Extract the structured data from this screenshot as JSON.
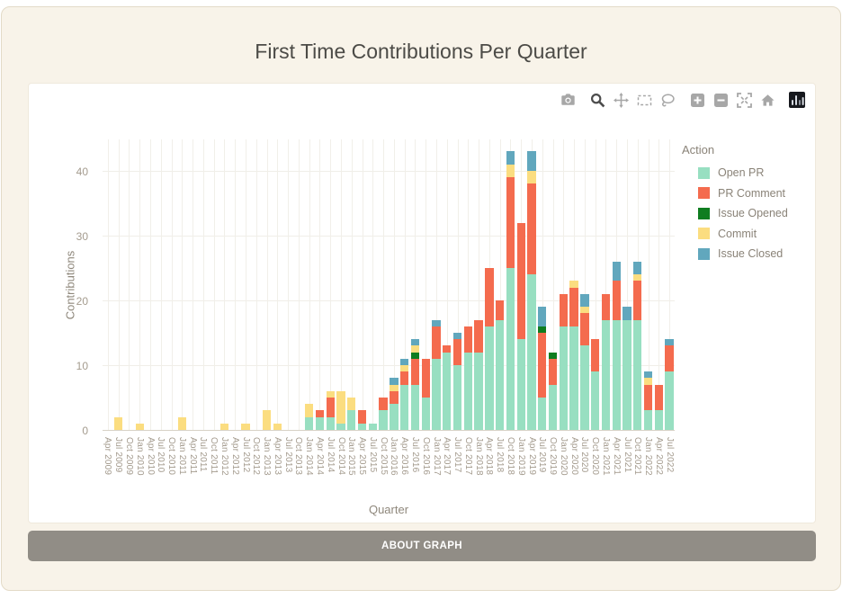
{
  "page": {
    "title": "First Time Contributions Per Quarter"
  },
  "about_button": {
    "label": "ABOUT GRAPH"
  },
  "colors": {
    "page_background": "#f8f3e9",
    "card_background": "#ffffff",
    "button_gray": "#918d86",
    "axis_text": "#a49b8e",
    "modebar_icon": "#a7a7a7",
    "modebar_active_icon": "#4c4c4c"
  },
  "modebar": {
    "icons": [
      "camera-icon",
      "zoom-icon",
      "pan-icon",
      "box-select-icon",
      "lasso-select-icon",
      "zoom-in-icon",
      "zoom-out-icon",
      "autoscale-icon",
      "reset-home-icon",
      "plotly-logo-icon"
    ]
  },
  "chart_data": {
    "type": "bar",
    "stacked": true,
    "title": "First Time Contributions Per Quarter",
    "xlabel": "Quarter",
    "ylabel": "Contributions",
    "legend_title": "Action",
    "legend_position": "right",
    "grid": true,
    "ylim": [
      0,
      45
    ],
    "yticks": [
      0,
      10,
      20,
      30,
      40
    ],
    "categories": [
      "Apr 2009",
      "Jul 2009",
      "Oct 2009",
      "Jan 2010",
      "Apr 2010",
      "Jul 2010",
      "Oct 2010",
      "Jan 2011",
      "Apr 2011",
      "Jul 2011",
      "Oct 2011",
      "Jan 2012",
      "Apr 2012",
      "Jul 2012",
      "Oct 2012",
      "Jan 2013",
      "Apr 2013",
      "Jul 2013",
      "Oct 2013",
      "Jan 2014",
      "Apr 2014",
      "Jul 2014",
      "Oct 2014",
      "Jan 2015",
      "Apr 2015",
      "Jul 2015",
      "Oct 2015",
      "Jan 2016",
      "Apr 2016",
      "Jul 2016",
      "Oct 2016",
      "Jan 2017",
      "Apr 2017",
      "Jul 2017",
      "Oct 2017",
      "Jan 2018",
      "Apr 2018",
      "Jul 2018",
      "Oct 2018",
      "Jan 2019",
      "Apr 2019",
      "Jul 2019",
      "Oct 2019",
      "Jan 2020",
      "Apr 2020",
      "Jul 2020",
      "Oct 2020",
      "Jan 2021",
      "Apr 2021",
      "Jul 2021",
      "Oct 2021",
      "Jan 2022",
      "Apr 2022",
      "Jul 2022"
    ],
    "series": [
      {
        "name": "Open PR",
        "color": "#98dfc1",
        "values": [
          0,
          0,
          0,
          0,
          0,
          0,
          0,
          0,
          0,
          0,
          0,
          0,
          0,
          0,
          0,
          0,
          0,
          0,
          0,
          2,
          2,
          2,
          1,
          3,
          1,
          1,
          3,
          4,
          7,
          7,
          5,
          11,
          12,
          10,
          12,
          12,
          16,
          17,
          25,
          14,
          24,
          5,
          7,
          16,
          16,
          13,
          9,
          17,
          17,
          17,
          17,
          3,
          3,
          9
        ]
      },
      {
        "name": "PR Comment",
        "color": "#f46b4e",
        "values": [
          0,
          0,
          0,
          0,
          0,
          0,
          0,
          0,
          0,
          0,
          0,
          0,
          0,
          0,
          0,
          0,
          0,
          0,
          0,
          0,
          1,
          3,
          0,
          0,
          2,
          0,
          2,
          2,
          2,
          4,
          6,
          5,
          1,
          4,
          4,
          5,
          9,
          3,
          14,
          18,
          14,
          10,
          4,
          5,
          6,
          5,
          5,
          4,
          6,
          0,
          6,
          4,
          4,
          4
        ]
      },
      {
        "name": "Issue Opened",
        "color": "#0f7d20",
        "values": [
          0,
          0,
          0,
          0,
          0,
          0,
          0,
          0,
          0,
          0,
          0,
          0,
          0,
          0,
          0,
          0,
          0,
          0,
          0,
          0,
          0,
          0,
          0,
          0,
          0,
          0,
          0,
          0,
          0,
          1,
          0,
          0,
          0,
          0,
          0,
          0,
          0,
          0,
          0,
          0,
          0,
          1,
          1,
          0,
          0,
          0,
          0,
          0,
          0,
          0,
          0,
          0,
          0,
          0
        ]
      },
      {
        "name": "Commit",
        "color": "#fbdd80",
        "values": [
          0,
          2,
          0,
          1,
          0,
          0,
          0,
          2,
          0,
          0,
          0,
          1,
          0,
          1,
          0,
          3,
          1,
          0,
          0,
          2,
          0,
          1,
          5,
          2,
          0,
          0,
          0,
          1,
          1,
          1,
          0,
          0,
          0,
          0,
          0,
          0,
          0,
          0,
          2,
          0,
          2,
          0,
          0,
          0,
          1,
          1,
          0,
          0,
          0,
          0,
          1,
          1,
          0,
          0
        ]
      },
      {
        "name": "Issue Closed",
        "color": "#61a7bd",
        "values": [
          0,
          0,
          0,
          0,
          0,
          0,
          0,
          0,
          0,
          0,
          0,
          0,
          0,
          0,
          0,
          0,
          0,
          0,
          0,
          0,
          0,
          0,
          0,
          0,
          0,
          0,
          0,
          1,
          1,
          1,
          0,
          1,
          0,
          1,
          0,
          0,
          0,
          0,
          2,
          0,
          3,
          3,
          0,
          0,
          0,
          2,
          0,
          0,
          3,
          2,
          2,
          1,
          0,
          1
        ]
      }
    ]
  }
}
